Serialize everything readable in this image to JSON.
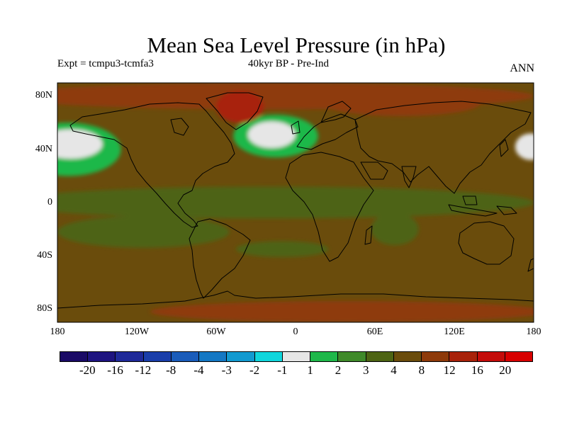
{
  "title": "Mean Sea Level Pressure (in hPa)",
  "left_subtitle": "Expt = tcmpu3-tcmfa3",
  "center_subtitle": "40kyr BP - Pre-Ind",
  "right_subtitle": "ANN",
  "y_ticks": [
    "80N",
    "40N",
    "0",
    "40S",
    "80S"
  ],
  "x_ticks": [
    "180",
    "120W",
    "60W",
    "0",
    "60E",
    "120E",
    "180"
  ],
  "colorbar": {
    "labels": [
      "-20",
      "-16",
      "-12",
      "-8",
      "-4",
      "-3",
      "-2",
      "-1",
      "1",
      "2",
      "3",
      "4",
      "8",
      "12",
      "16",
      "20"
    ],
    "colors": [
      "#1a0a66",
      "#1e1480",
      "#1f2a99",
      "#1a3eaa",
      "#1a5cba",
      "#1478c4",
      "#129ad0",
      "#10d6dc",
      "#e6e6e6",
      "#1eb84a",
      "#3f8a2a",
      "#4d6414",
      "#6a4c0c",
      "#8e3a0a",
      "#a8220a",
      "#c40c0a",
      "#d80000"
    ]
  },
  "chart_data": {
    "type": "heatmap",
    "title": "Mean Sea Level Pressure (in hPa)",
    "xlabel": "",
    "ylabel": "",
    "xlim": [
      -180,
      180
    ],
    "ylim": [
      -90,
      90
    ],
    "grid": false,
    "legend": "colorbar-bottom",
    "x_tick_values": [
      -180,
      -120,
      -60,
      0,
      60,
      120,
      180
    ],
    "y_tick_values": [
      80,
      40,
      0,
      -40,
      -80
    ],
    "background_level": "4 to 8",
    "regions": [
      {
        "id": "n-pacific-low",
        "lon": -170,
        "lat": 44,
        "rx": 24,
        "ry": 11,
        "level": "-1 to 1"
      },
      {
        "id": "n-pacific-ring",
        "lon": -172,
        "lat": 40,
        "rx": 40,
        "ry": 20,
        "level": "1 to 2"
      },
      {
        "id": "nw-pacific-low",
        "lon": 178,
        "lat": 42,
        "rx": 12,
        "ry": 10,
        "level": "-1 to 1"
      },
      {
        "id": "n-atlantic-low",
        "lon": -18,
        "lat": 51,
        "rx": 18,
        "ry": 10,
        "level": "-1 to 1"
      },
      {
        "id": "n-atlantic-ring",
        "lon": -15,
        "lat": 50,
        "rx": 32,
        "ry": 16,
        "level": "1 to 2"
      },
      {
        "id": "tropics-band",
        "lon": -20,
        "lat": 0,
        "rx": 200,
        "ry": 12,
        "level": "3 to 4"
      },
      {
        "id": "s-pacific-band",
        "lon": -115,
        "lat": -22,
        "rx": 65,
        "ry": 12,
        "level": "3 to 4"
      },
      {
        "id": "s-atlantic-band",
        "lon": -10,
        "lat": -35,
        "rx": 35,
        "ry": 6,
        "level": "3 to 4"
      },
      {
        "id": "indian-ocean-band",
        "lon": 75,
        "lat": -20,
        "rx": 18,
        "ry": 12,
        "level": "3 to 4"
      },
      {
        "id": "arctic-high",
        "lon": -20,
        "lat": 80,
        "rx": 200,
        "ry": 10,
        "level": "8 to 12"
      },
      {
        "id": "greenland-high",
        "lon": -42,
        "lat": 72,
        "rx": 18,
        "ry": 12,
        "level": "12 to 16"
      },
      {
        "id": "siberia-high",
        "lon": 80,
        "lat": 75,
        "rx": 60,
        "ry": 10,
        "level": "8 to 12"
      },
      {
        "id": "antarctic-high",
        "lon": 40,
        "lat": -82,
        "rx": 150,
        "ry": 8,
        "level": "8 to 12"
      }
    ]
  }
}
